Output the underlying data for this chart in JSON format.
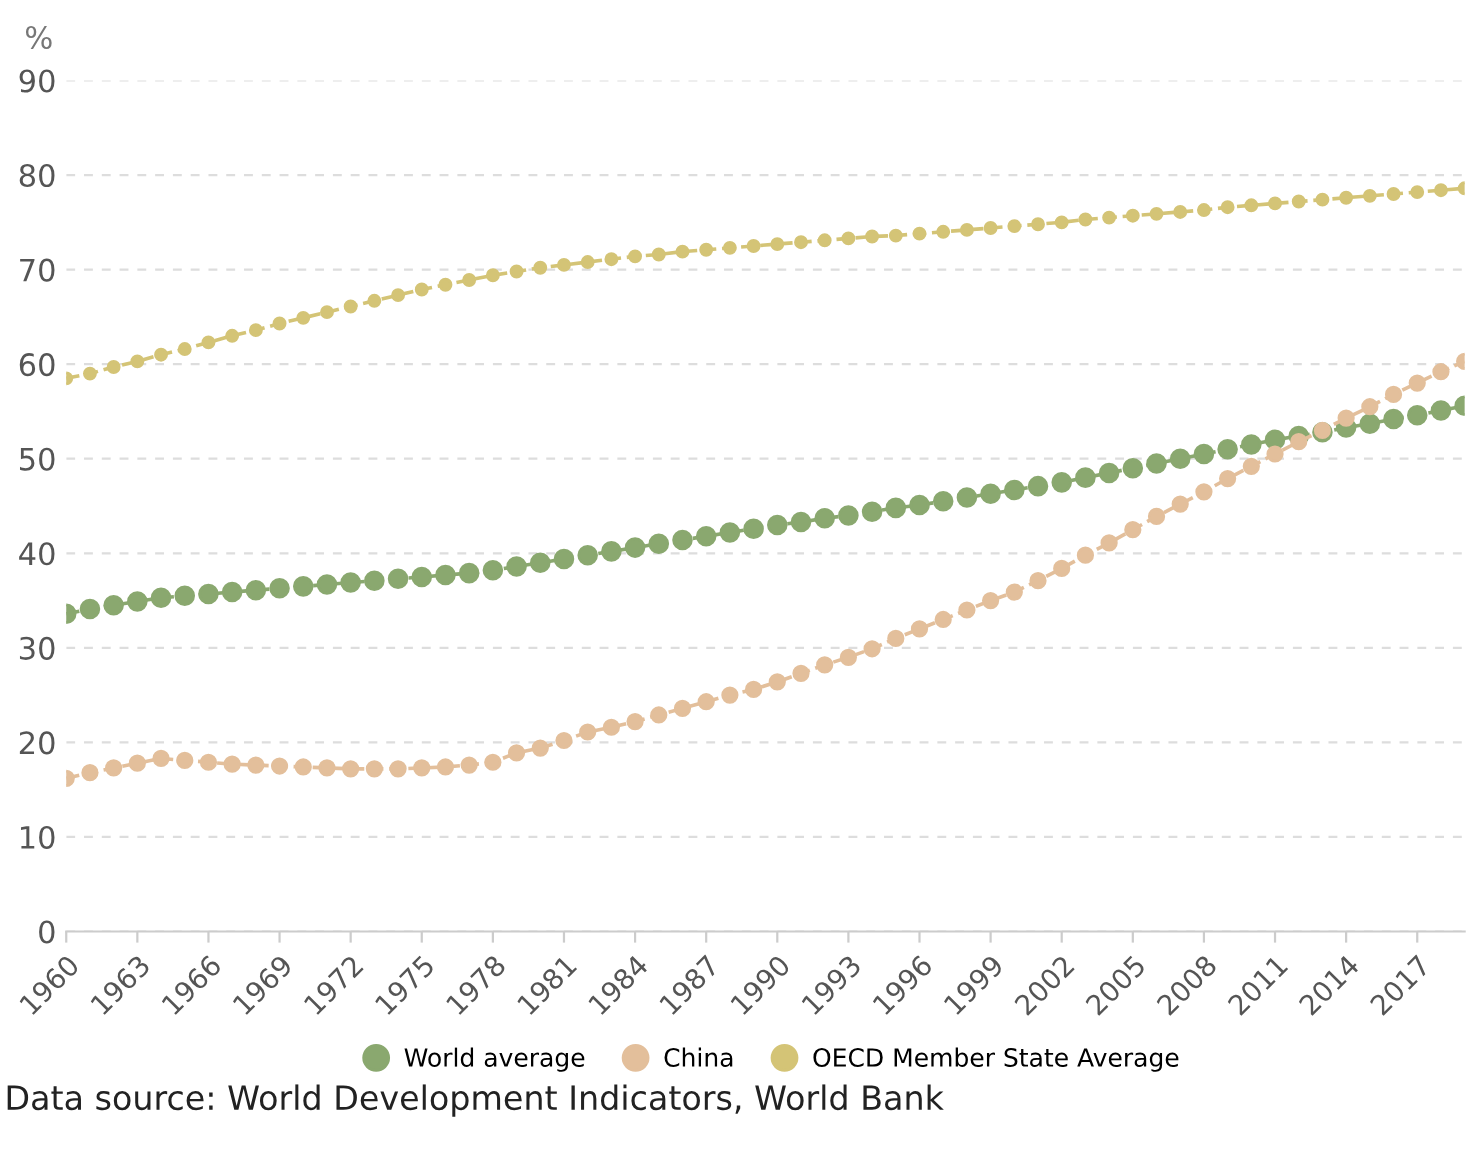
{
  "chart_data": {
    "type": "line",
    "ylabel": "%",
    "categories": [
      "1960",
      null,
      null,
      "1963",
      null,
      null,
      "1966",
      null,
      null,
      "1969",
      null,
      null,
      "1972",
      null,
      null,
      "1975",
      null,
      null,
      "1978",
      null,
      null,
      "1981",
      null,
      null,
      "1984",
      null,
      null,
      "1987",
      null,
      null,
      "1990",
      null,
      null,
      "1993",
      null,
      null,
      "1996",
      null,
      null,
      "1999",
      null,
      null,
      "2002",
      null,
      null,
      "2005",
      null,
      null,
      "2008",
      null,
      null,
      "2011",
      null,
      null,
      "2014",
      null,
      null,
      "2017",
      null,
      null
    ],
    "series": [
      {
        "name": "World average",
        "color": "#8aa86f",
        "values": [
          33.6,
          34.1,
          34.5,
          34.9,
          35.3,
          35.5,
          35.7,
          35.9,
          36.1,
          36.3,
          36.5,
          36.7,
          36.9,
          37.1,
          37.3,
          37.5,
          37.7,
          37.9,
          38.2,
          38.6,
          39.0,
          39.4,
          39.8,
          40.2,
          40.6,
          41.0,
          41.4,
          41.8,
          42.2,
          42.6,
          43.0,
          43.3,
          43.7,
          44.0,
          44.4,
          44.8,
          45.1,
          45.5,
          45.9,
          46.3,
          46.7,
          47.1,
          47.5,
          48.0,
          48.5,
          49.0,
          49.5,
          50.0,
          50.5,
          51.0,
          51.5,
          52.0,
          52.4,
          52.8,
          53.3,
          53.7,
          54.2,
          54.6,
          55.1,
          55.6
        ]
      },
      {
        "name": "China",
        "color": "#e3bf9b",
        "values": [
          16.2,
          16.8,
          17.3,
          17.8,
          18.3,
          18.1,
          17.9,
          17.7,
          17.6,
          17.5,
          17.4,
          17.3,
          17.2,
          17.2,
          17.2,
          17.3,
          17.4,
          17.6,
          17.9,
          18.9,
          19.4,
          20.2,
          21.1,
          21.6,
          22.2,
          22.9,
          23.6,
          24.3,
          25.0,
          25.6,
          26.4,
          27.3,
          28.2,
          29.0,
          29.9,
          31.0,
          32.0,
          33.0,
          34.0,
          35.0,
          35.9,
          37.1,
          38.4,
          39.8,
          41.1,
          42.5,
          43.9,
          45.2,
          46.5,
          47.9,
          49.2,
          50.5,
          51.8,
          53.0,
          54.3,
          55.5,
          56.8,
          58.0,
          59.2,
          60.3
        ]
      },
      {
        "name": "OECD Member State Average",
        "color": "#d4c476",
        "values": [
          58.5,
          59.0,
          59.7,
          60.3,
          61.0,
          61.6,
          62.3,
          63.0,
          63.6,
          64.3,
          64.9,
          65.5,
          66.1,
          66.7,
          67.3,
          67.9,
          68.4,
          68.9,
          69.4,
          69.8,
          70.2,
          70.5,
          70.8,
          71.1,
          71.4,
          71.6,
          71.9,
          72.1,
          72.3,
          72.5,
          72.7,
          72.9,
          73.1,
          73.3,
          73.5,
          73.6,
          73.8,
          74.0,
          74.2,
          74.4,
          74.6,
          74.8,
          75.0,
          75.3,
          75.5,
          75.7,
          75.9,
          76.1,
          76.3,
          76.6,
          76.8,
          77.0,
          77.2,
          77.4,
          77.6,
          77.8,
          78.0,
          78.2,
          78.4,
          78.6
        ]
      }
    ],
    "ylim": [
      0,
      90
    ],
    "yticks": [
      0,
      10,
      20,
      30,
      40,
      50,
      60,
      70,
      80,
      90
    ],
    "grid": "y",
    "legend": "bottom",
    "marker": "circle",
    "line_style": "dashed",
    "annotations": [
      "Data source: World Development Indicators, World Bank"
    ]
  }
}
